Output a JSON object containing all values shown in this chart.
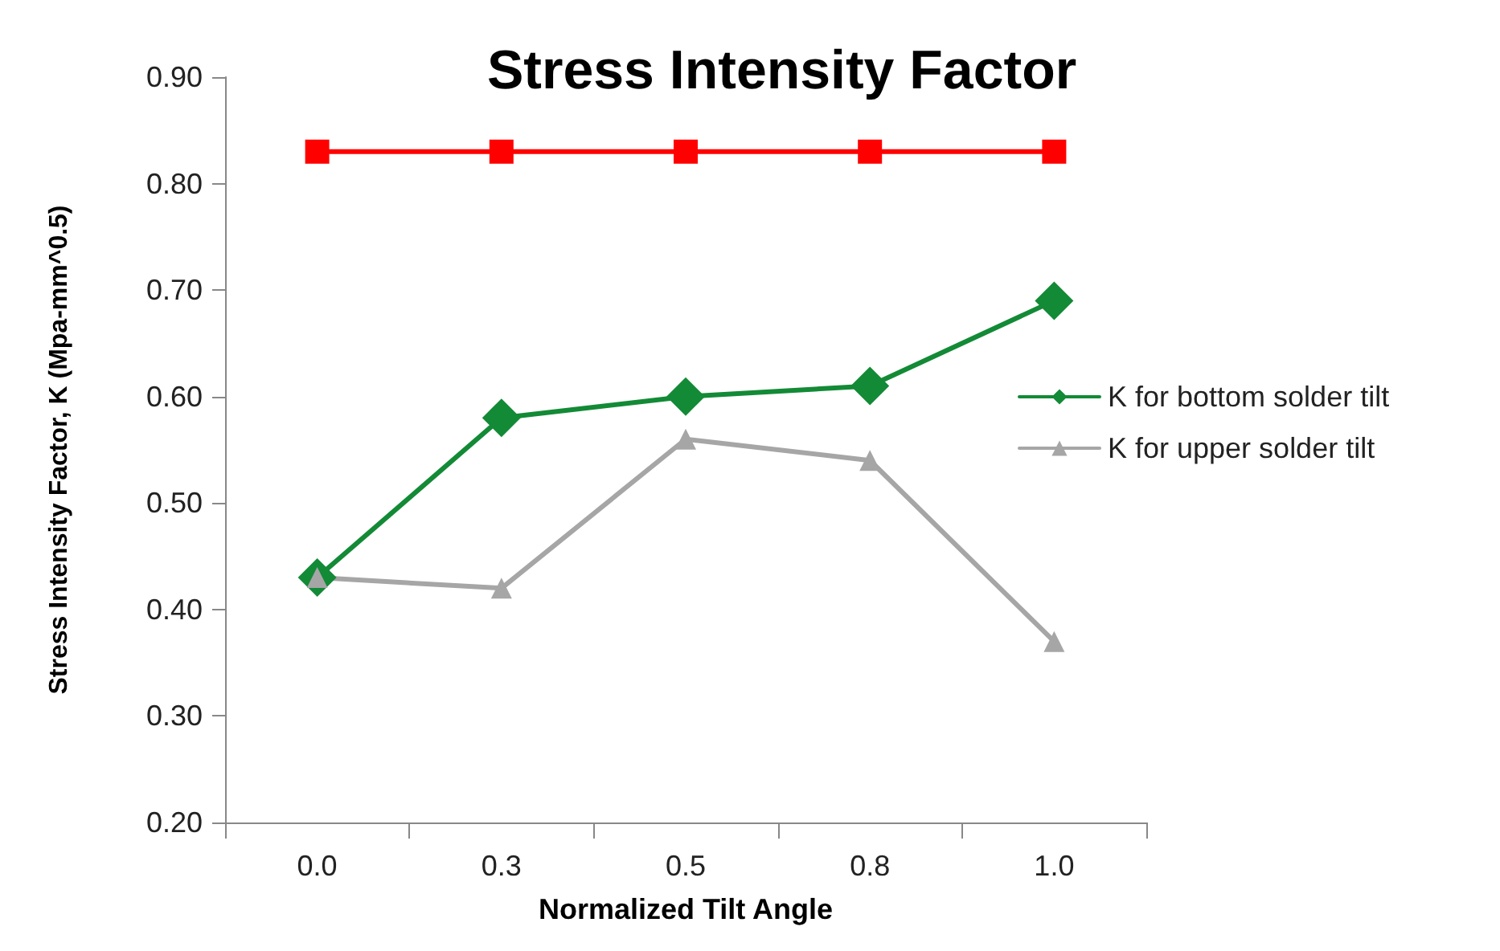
{
  "chart_data": {
    "type": "line",
    "title": "Stress Intensity Factor",
    "xlabel": "Normalized Tilt Angle",
    "ylabel": "Stress Intensity Factor, K (Mpa-mm^0.5)",
    "categories": [
      "0.0",
      "0.3",
      "0.5",
      "0.8",
      "1.0"
    ],
    "series": [
      {
        "color": "#ff0000",
        "marker": "square",
        "values": [
          0.83,
          0.83,
          0.83,
          0.83,
          0.83
        ]
      },
      {
        "name": "K for bottom solder tilt",
        "color": "#138a36",
        "marker": "diamond",
        "values": [
          0.43,
          0.58,
          0.6,
          0.61,
          0.69
        ]
      },
      {
        "name": "K for upper solder tilt",
        "color": "#a6a6a6",
        "marker": "triangle",
        "values": [
          0.43,
          0.42,
          0.56,
          0.54,
          0.37
        ]
      }
    ],
    "ylim": [
      0.2,
      0.9
    ],
    "yticks": [
      {
        "value": 0.2,
        "label": "0.20"
      },
      {
        "value": 0.3,
        "label": "0.30"
      },
      {
        "value": 0.4,
        "label": "0.40"
      },
      {
        "value": 0.5,
        "label": "0.50"
      },
      {
        "value": 0.6,
        "label": "0.60"
      },
      {
        "value": 0.7,
        "label": "0.70"
      },
      {
        "value": 0.8,
        "label": "0.80"
      },
      {
        "value": 0.9,
        "label": "0.90"
      }
    ],
    "grid": false,
    "legend": "right"
  }
}
